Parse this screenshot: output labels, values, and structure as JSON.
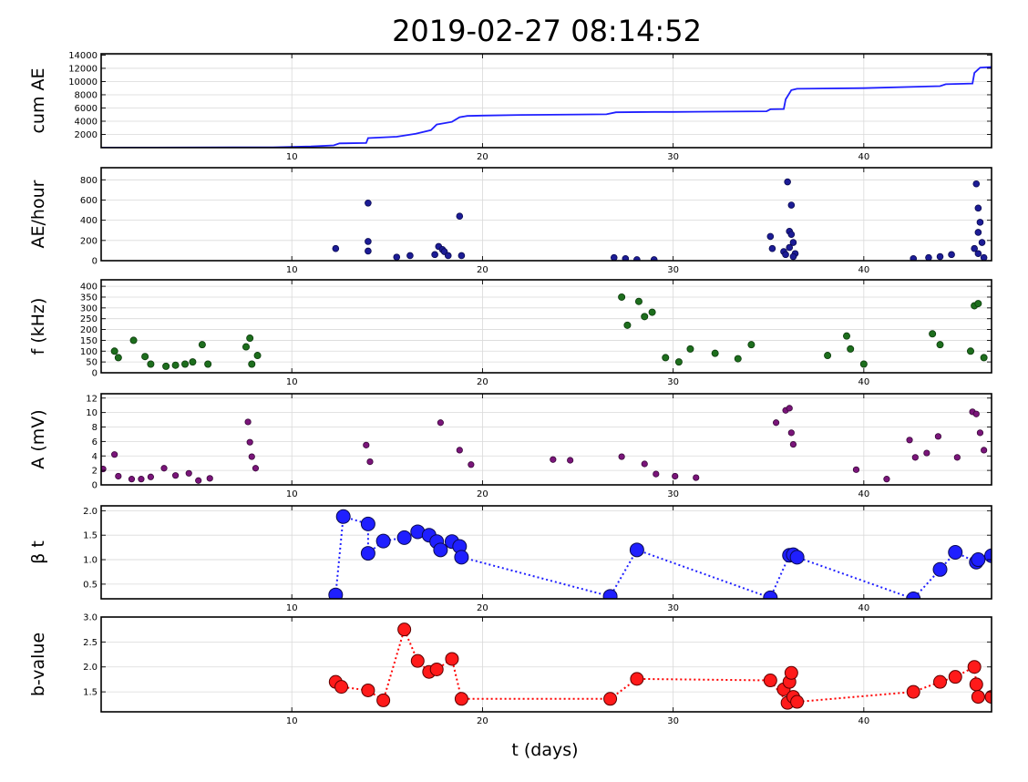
{
  "figure": {
    "title": "2019-02-27 08:14:52",
    "xlabel": "t (days)"
  },
  "chart_data": [
    {
      "type": "line",
      "ylabel": "cum AE",
      "xlim": [
        0,
        46.7
      ],
      "ylim": [
        0,
        14200
      ],
      "xticks": [
        10,
        20,
        30,
        40
      ],
      "yticks": [
        2000,
        4000,
        6000,
        8000,
        10000,
        12000,
        14000
      ],
      "grid": true,
      "color": "#1f1fff",
      "x": [
        0,
        9,
        11,
        12.2,
        12.5,
        13.9,
        14.0,
        15.5,
        16.5,
        17.3,
        17.6,
        18.4,
        18.8,
        19.2,
        20,
        22,
        26.5,
        27,
        29,
        30,
        32,
        34.9,
        35.1,
        35.8,
        35.9,
        36.2,
        36.5,
        40,
        44,
        44.3,
        45.7,
        45.8,
        46.1,
        46.7
      ],
      "y": [
        0,
        60,
        180,
        350,
        650,
        700,
        1450,
        1650,
        2100,
        2650,
        3500,
        3900,
        4600,
        4800,
        4850,
        4950,
        5050,
        5350,
        5400,
        5400,
        5450,
        5500,
        5800,
        5850,
        7300,
        8700,
        8900,
        9000,
        9300,
        9600,
        9700,
        11300,
        12100,
        12200
      ]
    },
    {
      "type": "scatter",
      "ylabel": "AE/hour",
      "xlim": [
        0,
        46.7
      ],
      "ylim": [
        0,
        920
      ],
      "xticks": [
        10,
        20,
        30,
        40
      ],
      "yticks": [
        0,
        200,
        400,
        600,
        800
      ],
      "grid": true,
      "color": "#1c1c96",
      "points": [
        [
          12.3,
          120
        ],
        [
          14.0,
          570
        ],
        [
          14.0,
          190
        ],
        [
          14.0,
          95
        ],
        [
          18.8,
          440
        ],
        [
          17.7,
          140
        ],
        [
          17.9,
          110
        ],
        [
          18.0,
          90
        ],
        [
          16.2,
          50
        ],
        [
          17.5,
          60
        ],
        [
          18.2,
          50
        ],
        [
          18.9,
          50
        ],
        [
          15.5,
          35
        ],
        [
          26.9,
          30
        ],
        [
          27.5,
          20
        ],
        [
          28.1,
          10
        ],
        [
          29.0,
          10
        ],
        [
          35.1,
          240
        ],
        [
          35.2,
          120
        ],
        [
          35.8,
          90
        ],
        [
          36.0,
          780
        ],
        [
          36.1,
          290
        ],
        [
          36.2,
          550
        ],
        [
          36.2,
          260
        ],
        [
          36.3,
          180
        ],
        [
          36.1,
          130
        ],
        [
          35.9,
          60
        ],
        [
          36.4,
          70
        ],
        [
          36.3,
          40
        ],
        [
          42.6,
          20
        ],
        [
          43.4,
          30
        ],
        [
          44.0,
          40
        ],
        [
          44.6,
          60
        ],
        [
          45.9,
          760
        ],
        [
          46.0,
          520
        ],
        [
          46.0,
          280
        ],
        [
          46.1,
          380
        ],
        [
          46.2,
          180
        ],
        [
          45.8,
          120
        ],
        [
          46.0,
          70
        ],
        [
          46.3,
          30
        ]
      ]
    },
    {
      "type": "scatter",
      "ylabel": "f (kHz)",
      "xlim": [
        0,
        46.7
      ],
      "ylim": [
        0,
        430
      ],
      "xticks": [
        10,
        20,
        30,
        40
      ],
      "yticks": [
        0,
        50,
        100,
        150,
        200,
        250,
        300,
        350,
        400
      ],
      "grid": true,
      "color": "#1d6e1d",
      "points": [
        [
          0.7,
          100
        ],
        [
          0.9,
          70
        ],
        [
          1.7,
          150
        ],
        [
          2.3,
          75
        ],
        [
          2.6,
          40
        ],
        [
          3.4,
          30
        ],
        [
          3.9,
          35
        ],
        [
          4.4,
          40
        ],
        [
          4.8,
          50
        ],
        [
          5.3,
          130
        ],
        [
          5.6,
          40
        ],
        [
          7.6,
          120
        ],
        [
          7.8,
          160
        ],
        [
          7.9,
          40
        ],
        [
          8.2,
          80
        ],
        [
          27.3,
          350
        ],
        [
          27.6,
          220
        ],
        [
          28.2,
          330
        ],
        [
          28.5,
          260
        ],
        [
          28.9,
          280
        ],
        [
          29.6,
          70
        ],
        [
          30.3,
          50
        ],
        [
          30.9,
          110
        ],
        [
          32.2,
          90
        ],
        [
          33.4,
          65
        ],
        [
          34.1,
          130
        ],
        [
          38.1,
          80
        ],
        [
          39.1,
          170
        ],
        [
          39.3,
          110
        ],
        [
          40.0,
          40
        ],
        [
          43.6,
          180
        ],
        [
          44.0,
          130
        ],
        [
          45.6,
          100
        ],
        [
          45.8,
          310
        ],
        [
          46.0,
          320
        ],
        [
          46.3,
          70
        ]
      ]
    },
    {
      "type": "scatter",
      "ylabel": "A (mV)",
      "xlim": [
        0,
        46.7
      ],
      "ylim": [
        0,
        12.6
      ],
      "xticks": [
        10,
        20,
        30,
        40
      ],
      "yticks": [
        0,
        2,
        4,
        6,
        8,
        10,
        12
      ],
      "grid": true,
      "color": "#6b136b",
      "points": [
        [
          0.1,
          2.2
        ],
        [
          0.7,
          4.2
        ],
        [
          0.9,
          1.2
        ],
        [
          1.6,
          0.8
        ],
        [
          2.1,
          0.8
        ],
        [
          2.6,
          1.1
        ],
        [
          3.3,
          2.3
        ],
        [
          3.9,
          1.3
        ],
        [
          4.6,
          1.6
        ],
        [
          5.1,
          0.6
        ],
        [
          5.7,
          0.9
        ],
        [
          7.7,
          8.7
        ],
        [
          7.8,
          5.9
        ],
        [
          7.9,
          3.9
        ],
        [
          8.1,
          2.3
        ],
        [
          13.9,
          5.5
        ],
        [
          14.1,
          3.2
        ],
        [
          17.8,
          8.6
        ],
        [
          18.8,
          4.8
        ],
        [
          19.4,
          2.8
        ],
        [
          23.7,
          3.5
        ],
        [
          24.6,
          3.4
        ],
        [
          27.3,
          3.9
        ],
        [
          28.5,
          2.9
        ],
        [
          29.1,
          1.5
        ],
        [
          30.1,
          1.2
        ],
        [
          31.2,
          1.0
        ],
        [
          35.4,
          8.6
        ],
        [
          35.9,
          10.3
        ],
        [
          36.1,
          10.6
        ],
        [
          36.2,
          7.2
        ],
        [
          36.3,
          5.6
        ],
        [
          39.6,
          2.1
        ],
        [
          41.2,
          0.8
        ],
        [
          42.4,
          6.2
        ],
        [
          42.7,
          3.8
        ],
        [
          43.3,
          4.4
        ],
        [
          43.9,
          6.7
        ],
        [
          44.9,
          3.8
        ],
        [
          45.7,
          10.1
        ],
        [
          45.9,
          9.8
        ],
        [
          46.1,
          7.2
        ],
        [
          46.3,
          4.8
        ]
      ]
    },
    {
      "type": "line",
      "ylabel": "β t",
      "xlim": [
        0,
        46.7
      ],
      "ylim": [
        0.2,
        2.1
      ],
      "xticks": [
        10,
        20,
        30,
        40
      ],
      "yticks": [
        0.5,
        1.0,
        1.5,
        2.0
      ],
      "grid": true,
      "color": "#1f1fff",
      "linestyle": "dotted",
      "x": [
        12.3,
        12.7,
        14.0,
        14.0,
        14.8,
        15.9,
        16.6,
        17.2,
        17.6,
        17.8,
        18.4,
        18.8,
        18.9,
        26.7,
        28.1,
        35.1,
        36.1,
        36.3,
        36.5,
        42.6,
        44.0,
        44.8,
        45.9,
        46.0,
        46.7
      ],
      "y": [
        0.28,
        1.88,
        1.73,
        1.13,
        1.38,
        1.45,
        1.57,
        1.5,
        1.37,
        1.2,
        1.37,
        1.27,
        1.05,
        0.25,
        1.2,
        0.22,
        1.09,
        1.1,
        1.05,
        0.2,
        0.8,
        1.15,
        0.95,
        1.0,
        1.08
      ]
    },
    {
      "type": "line",
      "ylabel": "b-value",
      "xlim": [
        0,
        46.7
      ],
      "ylim": [
        1.1,
        3.0
      ],
      "xticks": [
        10,
        20,
        30,
        40
      ],
      "yticks": [
        1.5,
        2.0,
        2.5,
        3.0
      ],
      "grid": true,
      "color": "#ff0000",
      "linestyle": "dotted",
      "x": [
        12.3,
        12.6,
        14.0,
        14.8,
        15.9,
        16.6,
        17.2,
        17.6,
        18.4,
        18.9,
        26.7,
        28.1,
        35.1,
        36.0,
        35.8,
        36.1,
        36.2,
        36.3,
        36.5,
        42.6,
        44.0,
        44.8,
        45.8,
        45.9,
        46.0,
        46.7
      ],
      "y": [
        1.7,
        1.6,
        1.53,
        1.33,
        2.75,
        2.12,
        1.9,
        1.95,
        2.16,
        1.36,
        1.36,
        1.76,
        1.73,
        1.28,
        1.55,
        1.7,
        1.88,
        1.4,
        1.3,
        1.5,
        1.7,
        1.8,
        2.0,
        1.65,
        1.4,
        1.4
      ]
    }
  ]
}
